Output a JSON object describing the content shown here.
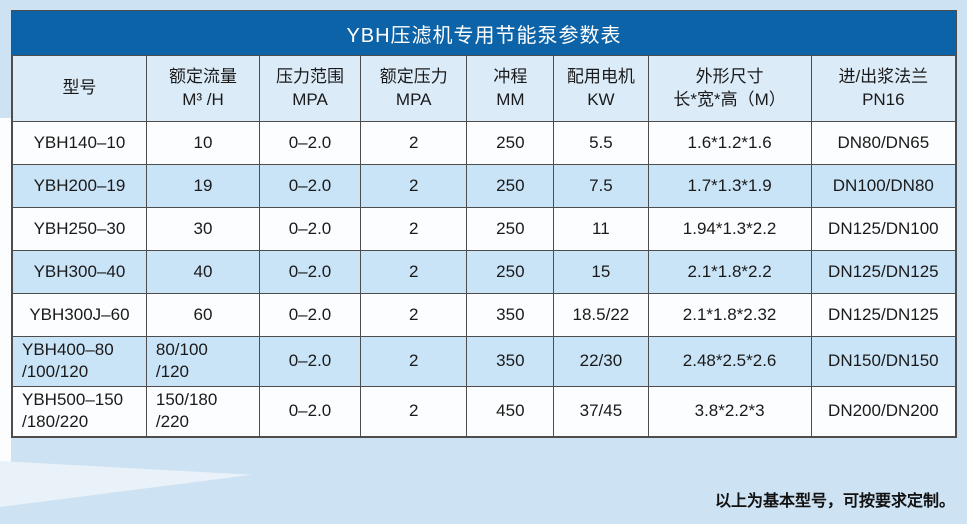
{
  "table": {
    "title": "YBH压滤机专用节能泵参数表",
    "columns": [
      {
        "key": "model",
        "label": "型号"
      },
      {
        "key": "rated-flow",
        "label": "额定流量\nM³ /H"
      },
      {
        "key": "pressure-range",
        "label": "压力范围\nMPA"
      },
      {
        "key": "rated-pressure",
        "label": "额定压力\nMPA"
      },
      {
        "key": "stroke",
        "label": "冲程\nMM"
      },
      {
        "key": "motor-power",
        "label": "配用电机\nKW"
      },
      {
        "key": "dimensions",
        "label": "外形尺寸\n长*宽*高（M）"
      },
      {
        "key": "flange",
        "label": "进/出浆法兰\nPN16"
      }
    ],
    "rows": [
      [
        "YBH140–10",
        "10",
        "0–2.0",
        "2",
        "250",
        "5.5",
        "1.6*1.2*1.6",
        "DN80/DN65"
      ],
      [
        "YBH200–19",
        "19",
        "0–2.0",
        "2",
        "250",
        "7.5",
        "1.7*1.3*1.9",
        "DN100/DN80"
      ],
      [
        "YBH250–30",
        "30",
        "0–2.0",
        "2",
        "250",
        "11",
        "1.94*1.3*2.2",
        "DN125/DN100"
      ],
      [
        "YBH300–40",
        "40",
        "0–2.0",
        "2",
        "250",
        "15",
        "2.1*1.8*2.2",
        "DN125/DN125"
      ],
      [
        "YBH300J–60",
        "60",
        "0–2.0",
        "2",
        "350",
        "18.5/22",
        "2.1*1.8*2.32",
        "DN125/DN125"
      ],
      [
        "YBH400–80\n/100/120",
        "80/100\n/120",
        "0–2.0",
        "2",
        "350",
        "22/30",
        "2.48*2.5*2.6",
        "DN150/DN150"
      ],
      [
        "YBH500–150\n/180/220",
        "150/180\n/220",
        "0–2.0",
        "2",
        "450",
        "37/45",
        "3.8*2.2*3",
        "DN200/DN200"
      ]
    ]
  },
  "footer": {
    "note": "以上为基本型号，可按要求定制。"
  },
  "colors": {
    "title_bar": "#0d63a8",
    "header_row": "#dcebf8",
    "alt_row": "#c9e3f7",
    "row": "#fcfdfe",
    "border": "#4d4d4d",
    "page_background": "#cde2f2"
  }
}
